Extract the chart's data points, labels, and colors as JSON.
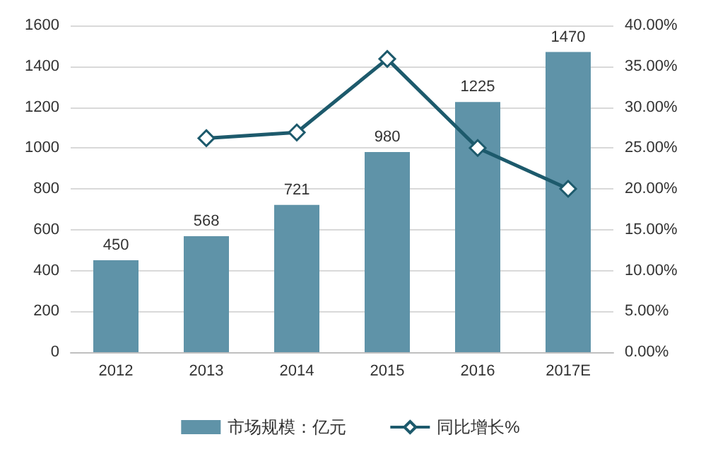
{
  "chart_data": {
    "type": "bar",
    "categories": [
      "2012",
      "2013",
      "2014",
      "2015",
      "2016",
      "2017E"
    ],
    "series": [
      {
        "name": "市场规模：亿元",
        "color": "#5f93a8",
        "values": [
          450,
          568,
          721,
          980,
          1225,
          1470
        ],
        "data_labels": true
      },
      {
        "name": "同比增长%",
        "type": "line",
        "axis": "y2",
        "color": "#1d5a6c",
        "marker": "diamond",
        "values": [
          null,
          26.2,
          26.9,
          35.9,
          25.0,
          20.0
        ]
      }
    ],
    "ylim": [
      0,
      1600
    ],
    "yticks": [
      0,
      200,
      400,
      600,
      800,
      1000,
      1200,
      1400,
      1600
    ],
    "y2lim": [
      0,
      40
    ],
    "y2ticks": [
      {
        "value": 0,
        "label": "0.00%"
      },
      {
        "value": 5,
        "label": "5.00%"
      },
      {
        "value": 10,
        "label": "10.00%"
      },
      {
        "value": 15,
        "label": "15.00%"
      },
      {
        "value": 20,
        "label": "20.00%"
      },
      {
        "value": 25,
        "label": "25.00%"
      },
      {
        "value": 30,
        "label": "30.00%"
      },
      {
        "value": 35,
        "label": "35.00%"
      },
      {
        "value": 40,
        "label": "40.00%"
      }
    ],
    "grid": "y",
    "legend": "bottom"
  }
}
